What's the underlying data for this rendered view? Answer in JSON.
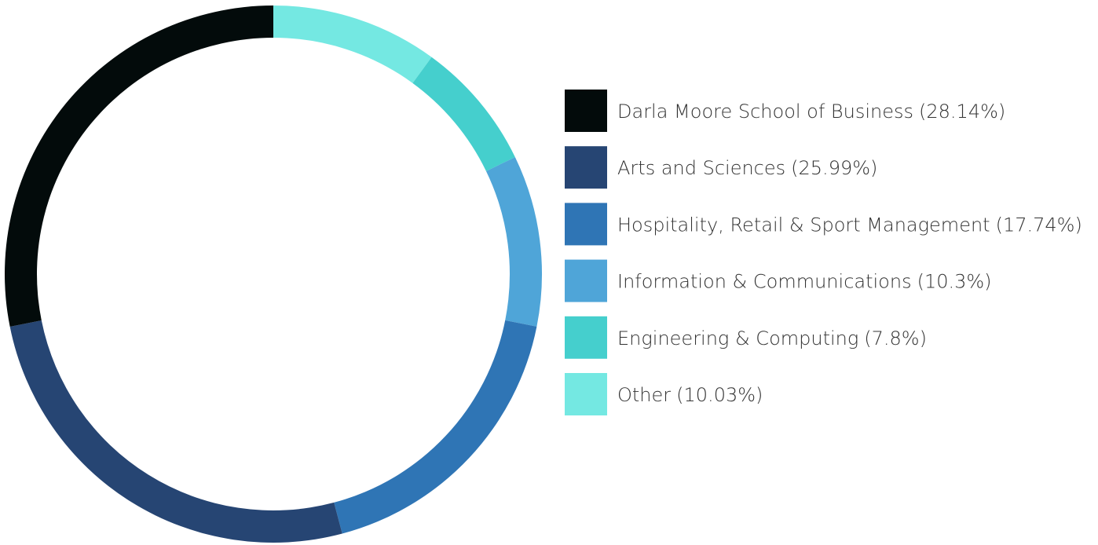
{
  "chart_data": {
    "type": "donut",
    "categories": [
      "Darla Moore School of Business",
      "Arts and Sciences",
      "Hospitality, Retail & Sport Management",
      "Information & Communications",
      "Engineering & Computing",
      "Other"
    ],
    "values": [
      28.14,
      25.99,
      17.74,
      10.3,
      7.8,
      10.03
    ],
    "value_labels": [
      "(28.14%)",
      "(25.99%)",
      "(17.74%)",
      "(10.3%)",
      "(7.8%)",
      "(10.03%)"
    ],
    "colors": [
      "#030b0b",
      "#264573",
      "#2f75b5",
      "#4fa5d8",
      "#45cfcd",
      "#74e8e2"
    ],
    "legend": "right"
  }
}
